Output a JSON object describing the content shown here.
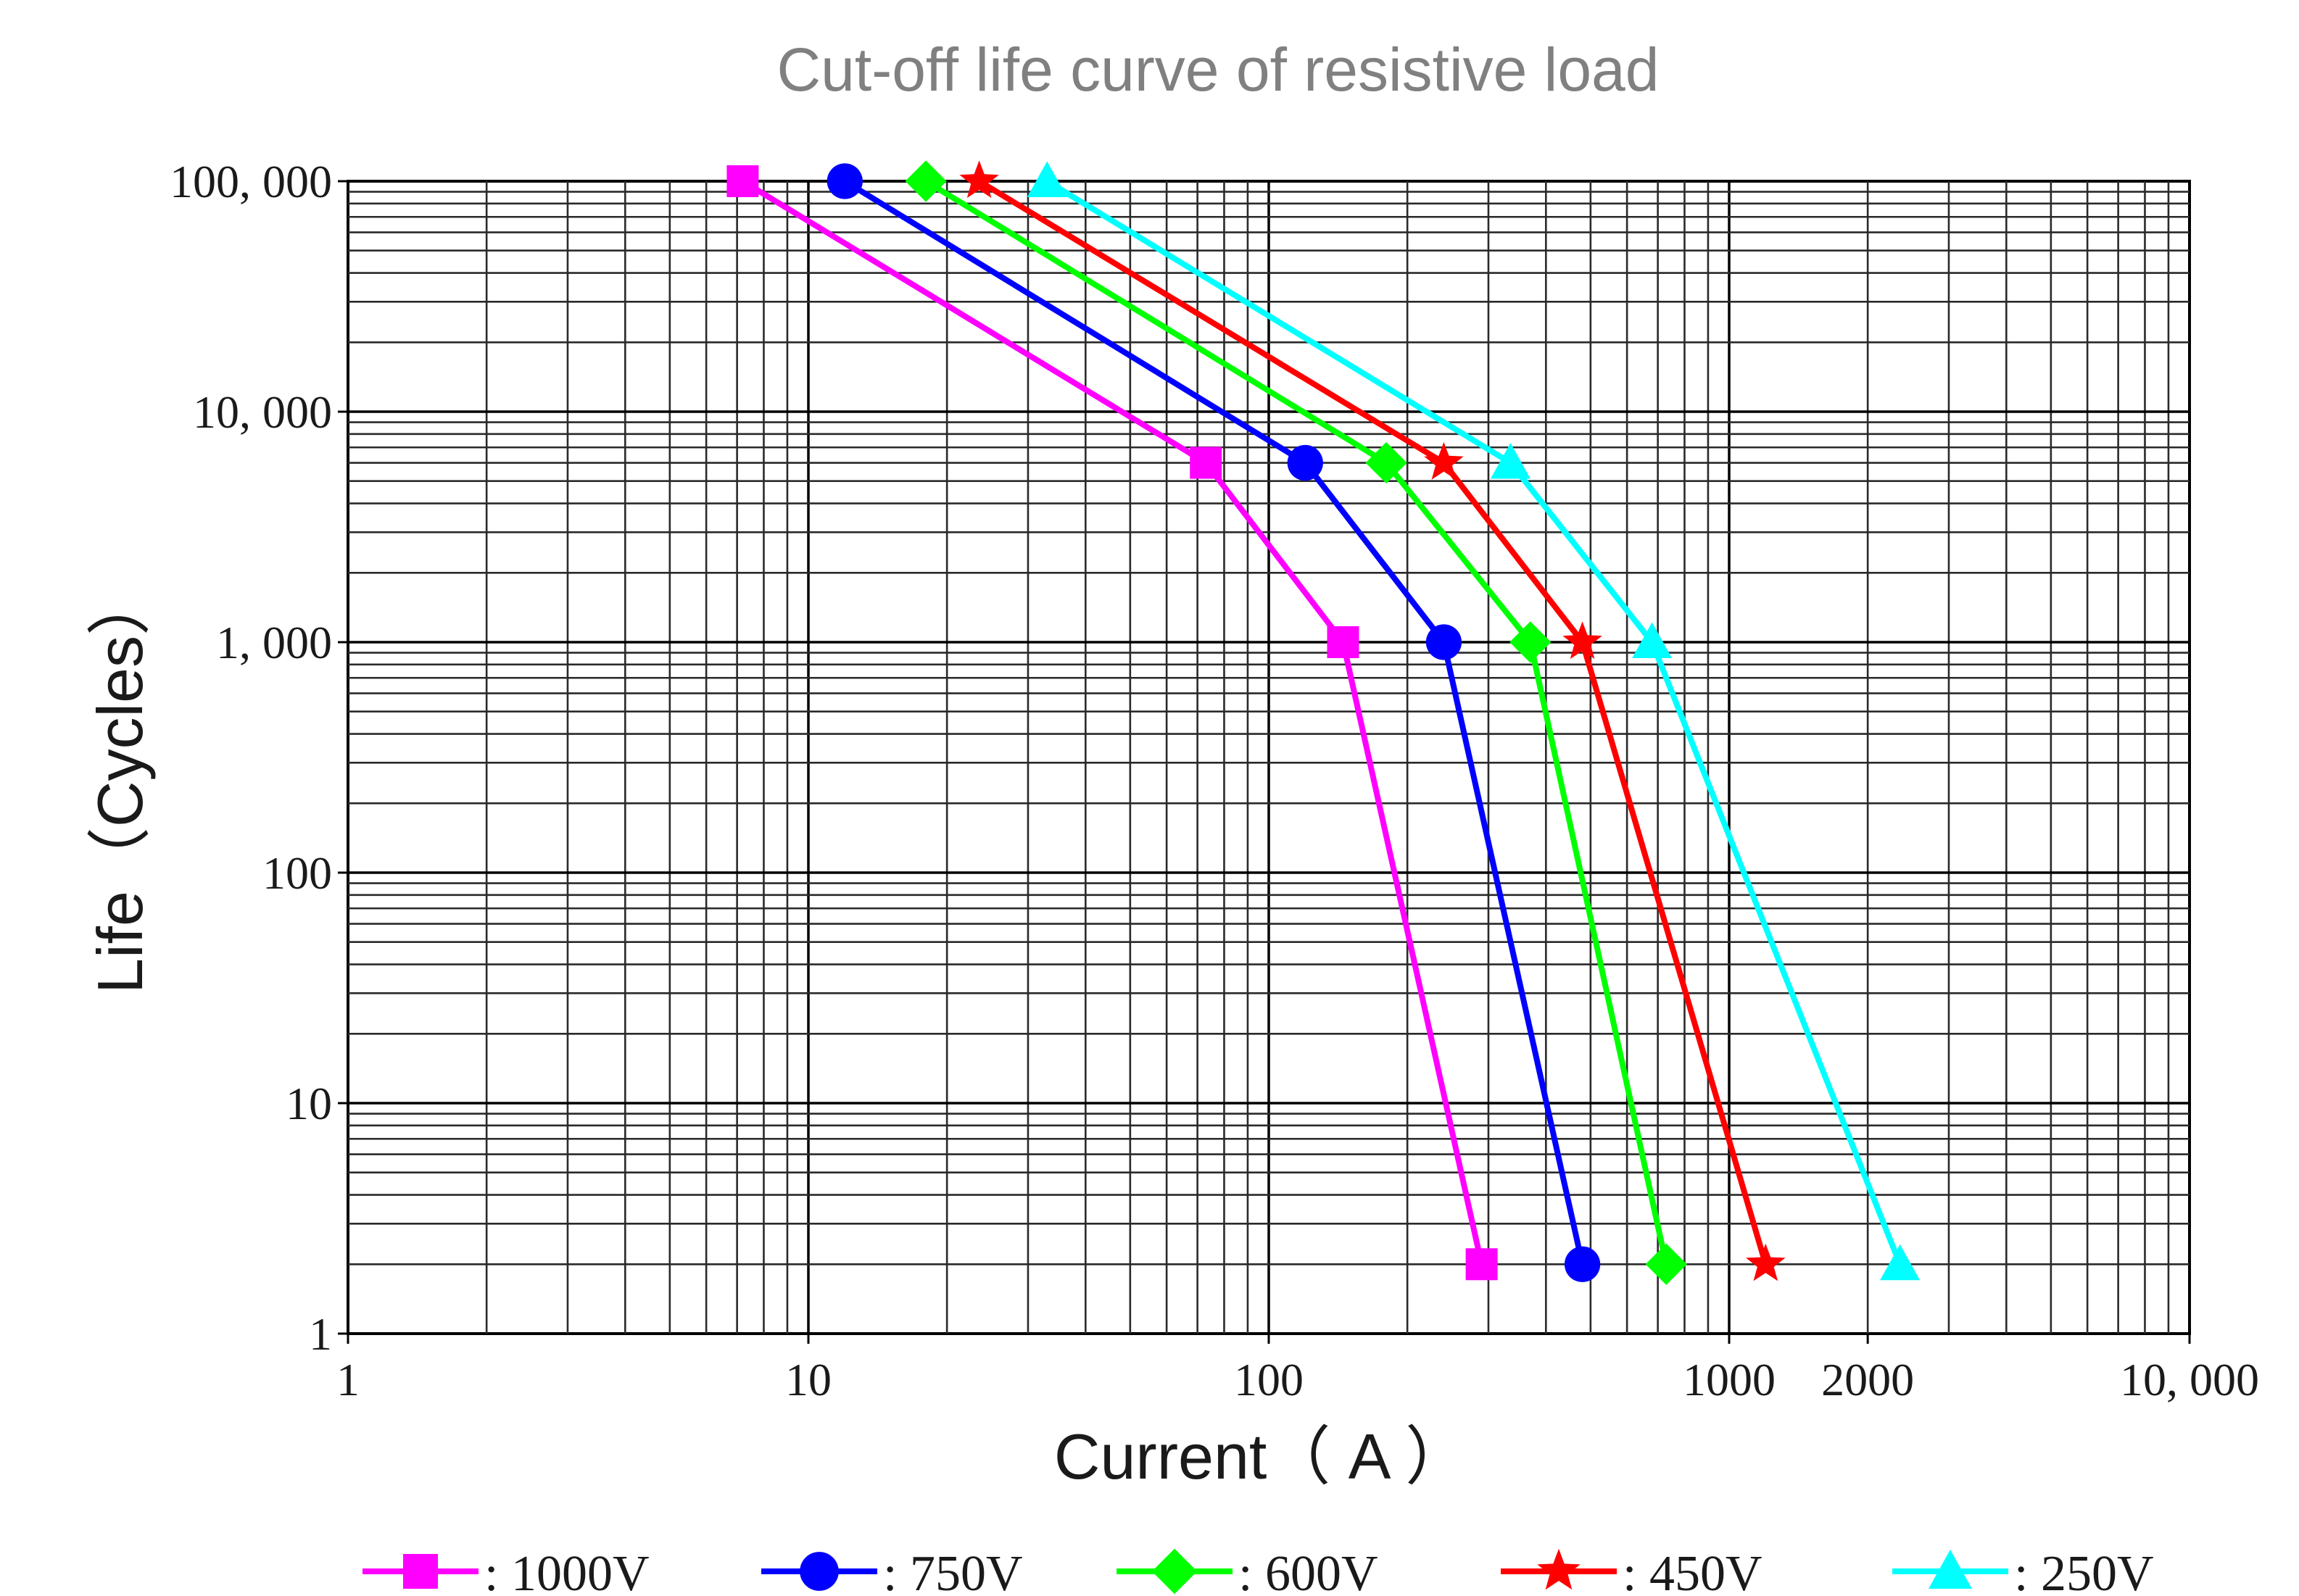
{
  "chart_data": {
    "type": "line",
    "title": "Cut-off life curve of resistive load",
    "xlabel": "Current（ A ）",
    "ylabel": "Life（Cycles）",
    "x_scale": "log",
    "y_scale": "log",
    "xlim": [
      1,
      10000
    ],
    "ylim": [
      1,
      100000
    ],
    "grid": true,
    "legend_position": "bottom",
    "x_ticks": [
      {
        "value": 1,
        "label": "1"
      },
      {
        "value": 10,
        "label": "10"
      },
      {
        "value": 100,
        "label": "100"
      },
      {
        "value": 1000,
        "label": "1000"
      },
      {
        "value": 2000,
        "label": "2000"
      },
      {
        "value": 10000,
        "label": "10, 000"
      }
    ],
    "y_ticks": [
      {
        "value": 1,
        "label": "1"
      },
      {
        "value": 10,
        "label": "10"
      },
      {
        "value": 100,
        "label": "100"
      },
      {
        "value": 1000,
        "label": "1, 000"
      },
      {
        "value": 10000,
        "label": "10, 000"
      },
      {
        "value": 100000,
        "label": "100, 000"
      }
    ],
    "series": [
      {
        "name": ": 1000V",
        "color": "#ff00ff",
        "marker": "square",
        "points": [
          [
            7.2,
            100000
          ],
          [
            73,
            6000
          ],
          [
            145,
            1000
          ],
          [
            290,
            2
          ]
        ]
      },
      {
        "name": ": 750V",
        "color": "#0000ff",
        "marker": "circle",
        "points": [
          [
            12,
            100000
          ],
          [
            120,
            6000
          ],
          [
            240,
            1000
          ],
          [
            480,
            2
          ]
        ]
      },
      {
        "name": ": 600V",
        "color": "#00ff00",
        "marker": "diamond",
        "points": [
          [
            18,
            100000
          ],
          [
            180,
            6000
          ],
          [
            370,
            1000
          ],
          [
            730,
            2
          ]
        ]
      },
      {
        "name": ": 450V",
        "color": "#ff0000",
        "marker": "star",
        "points": [
          [
            23.5,
            100000
          ],
          [
            240,
            6000
          ],
          [
            480,
            1000
          ],
          [
            1200,
            2
          ]
        ]
      },
      {
        "name": ": 250V",
        "color": "#00ffff",
        "marker": "triangle",
        "points": [
          [
            33,
            100000
          ],
          [
            335,
            6000
          ],
          [
            680,
            1000
          ],
          [
            2350,
            2
          ]
        ]
      }
    ]
  }
}
